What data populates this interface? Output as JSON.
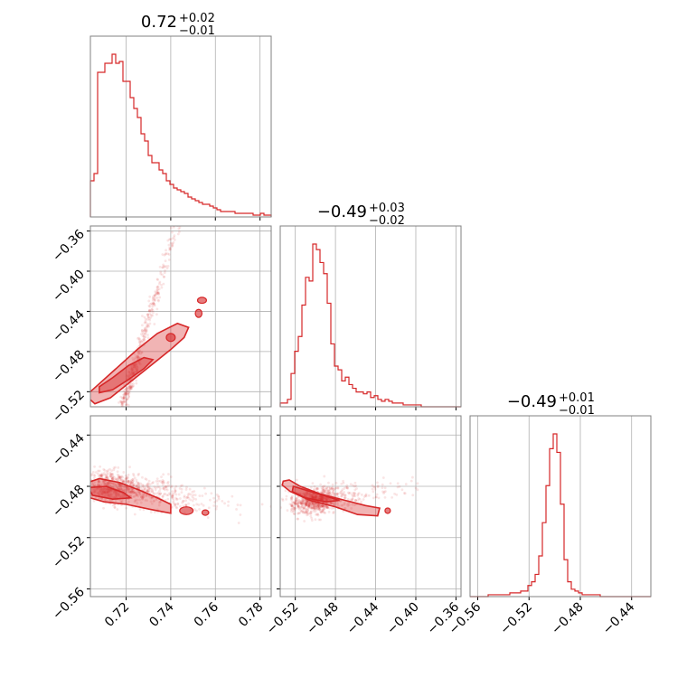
{
  "chart_data": {
    "type": "corner",
    "color": "#d62728",
    "parameters": [
      {
        "title_main": "0.72",
        "title_plus": "+0.02",
        "title_minus": "−0.01",
        "range": [
          0.704,
          0.785
        ],
        "ticks": [
          0.72,
          0.74,
          0.76,
          0.78
        ],
        "tick_labels": [
          "0.72",
          "0.74",
          "0.76",
          "0.78"
        ]
      },
      {
        "title_main": "−0.49",
        "title_plus": "+0.03",
        "title_minus": "−0.02",
        "range": [
          -0.535,
          -0.355
        ],
        "ticks": [
          -0.52,
          -0.48,
          -0.44,
          -0.4,
          -0.36
        ],
        "tick_labels": [
          "−0.52",
          "−0.48",
          "−0.44",
          "−0.40",
          "−0.36"
        ]
      },
      {
        "title_main": "−0.49",
        "title_plus": "+0.01",
        "title_minus": "−0.01",
        "range": [
          -0.566,
          -0.425
        ],
        "ticks": [
          -0.56,
          -0.52,
          -0.48,
          -0.44
        ],
        "tick_labels": [
          "−0.56",
          "−0.52",
          "−0.48",
          "−0.44"
        ]
      }
    ],
    "histograms": [
      {
        "edges_start": 0.704,
        "bin_width": 0.00162,
        "counts": [
          20,
          24,
          80,
          80,
          85,
          85,
          90,
          85,
          86,
          75,
          75,
          66,
          60,
          55,
          46,
          42,
          34,
          30,
          30,
          26,
          24,
          20,
          18,
          16,
          15,
          14,
          13,
          11,
          10,
          9,
          8,
          7,
          7,
          6,
          5,
          4,
          3,
          3,
          3,
          3,
          2,
          2,
          2,
          2,
          2,
          1,
          1,
          2,
          1,
          1
        ]
      },
      {
        "edges_start": -0.535,
        "bin_width": 0.0036,
        "counts": [
          2,
          2,
          4,
          18,
          30,
          38,
          55,
          70,
          68,
          88,
          85,
          78,
          72,
          56,
          34,
          22,
          20,
          14,
          16,
          12,
          10,
          8,
          8,
          7,
          8,
          5,
          6,
          4,
          3,
          4,
          3,
          2,
          2,
          2,
          1,
          1,
          1,
          1,
          1,
          0,
          0,
          0,
          0,
          0,
          0,
          0,
          0,
          0,
          0,
          0
        ]
      },
      {
        "edges_start": -0.566,
        "bin_width": 0.00282,
        "counts": [
          0,
          0,
          0,
          0,
          0,
          1,
          1,
          1,
          1,
          1,
          1,
          2,
          2,
          2,
          3,
          3,
          6,
          8,
          12,
          22,
          40,
          60,
          80,
          88,
          78,
          50,
          20,
          8,
          4,
          3,
          2,
          1,
          1,
          1,
          1,
          1,
          0,
          0,
          0,
          0,
          0,
          0,
          0,
          0,
          0,
          0,
          0,
          0,
          0,
          0
        ]
      }
    ],
    "pairs": [
      {
        "x_param": 0,
        "y_param": 1,
        "slope": 7.5,
        "intercept": -5.925,
        "scatter_sd": 0.008,
        "outer": [
          [
            0.704,
            -0.528
          ],
          [
            0.706,
            -0.532
          ],
          [
            0.713,
            -0.526
          ],
          [
            0.722,
            -0.51
          ],
          [
            0.731,
            -0.494
          ],
          [
            0.74,
            -0.478
          ],
          [
            0.746,
            -0.466
          ],
          [
            0.748,
            -0.456
          ],
          [
            0.743,
            -0.452
          ],
          [
            0.734,
            -0.462
          ],
          [
            0.725,
            -0.478
          ],
          [
            0.716,
            -0.496
          ],
          [
            0.708,
            -0.512
          ],
          [
            0.703,
            -0.522
          ]
        ],
        "inner": [
          [
            0.708,
            -0.521
          ],
          [
            0.714,
            -0.518
          ],
          [
            0.721,
            -0.508
          ],
          [
            0.728,
            -0.497
          ],
          [
            0.732,
            -0.488
          ],
          [
            0.728,
            -0.486
          ],
          [
            0.721,
            -0.494
          ],
          [
            0.714,
            -0.506
          ],
          [
            0.708,
            -0.515
          ]
        ],
        "islands": [
          [
            0.738,
            -0.47
          ],
          [
            0.742,
            -0.462
          ],
          [
            0.751,
            -0.446
          ],
          [
            0.754,
            -0.438
          ],
          [
            0.756,
            -0.426
          ],
          [
            0.752,
            -0.432
          ]
        ]
      },
      {
        "x_param": 0,
        "y_param": 2,
        "slope": -0.25,
        "intercept": -0.302,
        "scatter_sd": 0.006,
        "outer": [
          [
            0.701,
            -0.478
          ],
          [
            0.708,
            -0.474
          ],
          [
            0.717,
            -0.477
          ],
          [
            0.726,
            -0.483
          ],
          [
            0.734,
            -0.489
          ],
          [
            0.74,
            -0.494
          ],
          [
            0.74,
            -0.501
          ],
          [
            0.731,
            -0.498
          ],
          [
            0.72,
            -0.494
          ],
          [
            0.71,
            -0.492
          ],
          [
            0.702,
            -0.488
          ],
          [
            0.699,
            -0.484
          ]
        ],
        "inner": [
          [
            0.703,
            -0.481
          ],
          [
            0.711,
            -0.48
          ],
          [
            0.719,
            -0.485
          ],
          [
            0.722,
            -0.489
          ],
          [
            0.714,
            -0.49
          ],
          [
            0.705,
            -0.487
          ]
        ],
        "islands": [
          [
            0.744,
            -0.496
          ],
          [
            0.75,
            -0.502
          ],
          [
            0.754,
            -0.499
          ],
          [
            0.757,
            -0.502
          ]
        ]
      },
      {
        "x_param": 1,
        "y_param": 2,
        "slope": 0.1,
        "intercept": -0.441,
        "scatter_sd": 0.005,
        "outer": [
          [
            -0.532,
            -0.476
          ],
          [
            -0.526,
            -0.475
          ],
          [
            -0.515,
            -0.48
          ],
          [
            -0.495,
            -0.486
          ],
          [
            -0.47,
            -0.491
          ],
          [
            -0.45,
            -0.495
          ],
          [
            -0.436,
            -0.497
          ],
          [
            -0.438,
            -0.503
          ],
          [
            -0.458,
            -0.502
          ],
          [
            -0.48,
            -0.496
          ],
          [
            -0.505,
            -0.491
          ],
          [
            -0.525,
            -0.484
          ],
          [
            -0.533,
            -0.479
          ]
        ],
        "inner": [
          [
            -0.522,
            -0.48
          ],
          [
            -0.505,
            -0.484
          ],
          [
            -0.488,
            -0.488
          ],
          [
            -0.476,
            -0.491
          ],
          [
            -0.49,
            -0.492
          ],
          [
            -0.51,
            -0.489
          ],
          [
            -0.523,
            -0.484
          ]
        ],
        "islands": [
          [
            -0.43,
            -0.5
          ],
          [
            -0.426,
            -0.498
          ]
        ]
      }
    ]
  }
}
